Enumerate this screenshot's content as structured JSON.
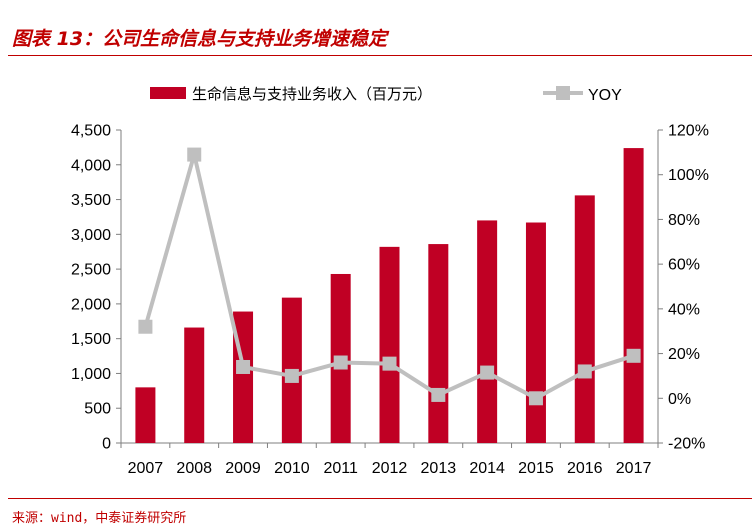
{
  "header": {
    "title": "图表 13：公司生命信息与支持业务增速稳定"
  },
  "footer": {
    "source": "来源：wind，中泰证券研究所"
  },
  "colors": {
    "brand": "#c00000",
    "bar": "#c00024",
    "line": "#bfbfbf",
    "axis": "#7f7f7f"
  },
  "chart_data": {
    "type": "bar",
    "categories": [
      "2007",
      "2008",
      "2009",
      "2010",
      "2011",
      "2012",
      "2013",
      "2014",
      "2015",
      "2016",
      "2017"
    ],
    "series": [
      {
        "name": "生命信息与支持业务收入（百万元）",
        "type": "bar",
        "axis": "left",
        "values": [
          800,
          1660,
          1890,
          2090,
          2430,
          2820,
          2860,
          3200,
          3170,
          3560,
          4240
        ]
      },
      {
        "name": "YOY",
        "type": "line",
        "axis": "right",
        "values": [
          0.32,
          1.09,
          0.14,
          0.1,
          0.16,
          0.155,
          0.015,
          0.115,
          0.0,
          0.12,
          0.19
        ]
      }
    ],
    "left_axis": {
      "ylim": [
        0,
        4500
      ],
      "ticks": [
        0,
        500,
        1000,
        1500,
        2000,
        2500,
        3000,
        3500,
        4000,
        4500
      ],
      "tick_labels": [
        "0",
        "500",
        "1,000",
        "1,500",
        "2,000",
        "2,500",
        "3,000",
        "3,500",
        "4,000",
        "4,500"
      ]
    },
    "right_axis": {
      "ylim": [
        -0.2,
        1.2
      ],
      "ticks": [
        -0.2,
        0,
        0.2,
        0.4,
        0.6,
        0.8,
        1.0,
        1.2
      ],
      "tick_labels": [
        "-20%",
        "0%",
        "20%",
        "40%",
        "60%",
        "80%",
        "100%",
        "120%"
      ]
    },
    "legend_position": "top",
    "grid": false
  }
}
